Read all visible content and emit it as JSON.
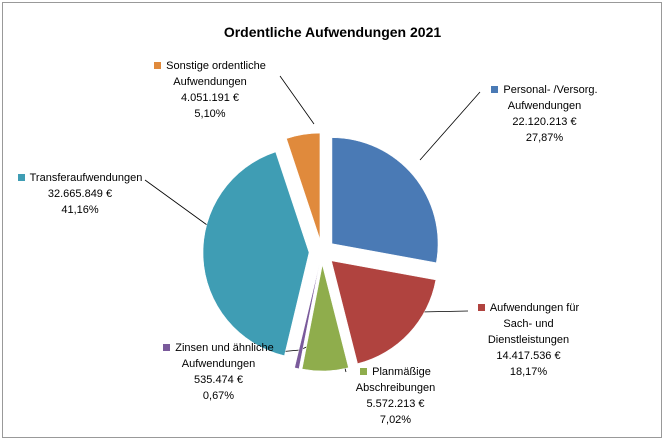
{
  "chart_data": {
    "type": "pie",
    "title": "Ordentliche Aufwendungen 2021",
    "categories": [
      "Personal- /Versorg. Aufwendungen",
      "Aufwendungen für Sach- und Dienstleistungen",
      "Planmäßige Abschreibungen",
      "Zinsen und ähnliche Aufwendungen",
      "Transferaufwendungen",
      "Sonstige ordentliche Aufwendungen"
    ],
    "values": [
      22120213,
      14417536,
      5572213,
      535474,
      32665849,
      4051191
    ],
    "value_labels": [
      "22.120.213 €",
      "14.417.536 €",
      "5.572.213 €",
      "535.474 €",
      "32.665.849 €",
      "4.051.191 €"
    ],
    "percents": [
      27.87,
      18.17,
      7.02,
      0.67,
      41.16,
      5.1
    ],
    "percent_labels": [
      "27,87%",
      "18,17%",
      "7,02%",
      "0,67%",
      "41,16%",
      "5,10%"
    ],
    "colors": [
      "#4a7ab5",
      "#b0433f",
      "#8fad4c",
      "#7a5a9b",
      "#3f9db4",
      "#e08a3c"
    ]
  }
}
